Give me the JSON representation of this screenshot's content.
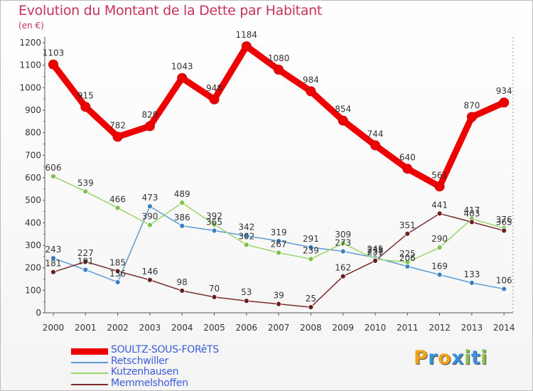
{
  "title": "Evolution du Montant de la Dette par Habitant",
  "unit": "(en €)",
  "logo": {
    "letters": [
      "P",
      "r",
      "o",
      "x",
      "i",
      "t",
      "i"
    ],
    "colors": [
      "#f2a21a",
      "#3a8fd6",
      "#f2a21a",
      "#3a8fd6",
      "#8bc34a",
      "#3a8fd6",
      "#8bc34a"
    ]
  },
  "chart_data": {
    "type": "line",
    "title": "Evolution du Montant de la Dette par Habitant",
    "ylabel": "(en €)",
    "xlabel": "",
    "x": [
      "2000",
      "2001",
      "2002",
      "2003",
      "2004",
      "2005",
      "2006",
      "2007",
      "2008",
      "2009",
      "2010",
      "2011",
      "2012",
      "2013",
      "2014"
    ],
    "ylim": [
      0,
      1200
    ],
    "yticks": [
      0,
      100,
      200,
      300,
      400,
      500,
      600,
      700,
      800,
      900,
      1000,
      1100,
      1200
    ],
    "grid": false,
    "legend": "bottom-left",
    "series": [
      {
        "name": "SOULTZ-SOUS-FORêTS",
        "color": "#ee0000",
        "marker": "#ee0000",
        "values": [
          1103,
          915,
          782,
          829,
          1043,
          948,
          1184,
          1080,
          984,
          854,
          744,
          640,
          561,
          870,
          934
        ],
        "labels": [
          "1103",
          "915",
          "782",
          "829",
          "1043",
          "948",
          "1184",
          "1080",
          "984",
          "854",
          "744",
          "640",
          "561",
          "870",
          "934"
        ]
      },
      {
        "name": "Retschwiller",
        "color": "#5b9bd5",
        "marker": "#3a7fc1",
        "values": [
          243,
          191,
          136,
          473,
          386,
          365,
          342,
          319,
          291,
          273,
          245,
          206,
          169,
          133,
          106
        ],
        "labels": [
          "243",
          "191",
          "136",
          "473",
          "386",
          "365",
          "342",
          "319",
          "291",
          "273",
          "245",
          "206",
          "169",
          "133",
          "106"
        ]
      },
      {
        "name": "Kutzenhausen",
        "color": "#9ad46a",
        "marker": "#7cc24a",
        "values": [
          606,
          539,
          466,
          390,
          489,
          392,
          302,
          267,
          239,
          309,
          238,
          225,
          290,
          417,
          376
        ],
        "labels": [
          "606",
          "539",
          "466",
          "390",
          "489",
          "392",
          "302",
          "267",
          "239",
          "309",
          "238",
          "225",
          "290",
          "417",
          "376"
        ]
      },
      {
        "name": "Memmelshoffen",
        "color": "#7b2d2d",
        "marker": "#6b1e1e",
        "values": [
          181,
          227,
          185,
          146,
          98,
          70,
          53,
          39,
          25,
          162,
          231,
          351,
          441,
          403,
          365
        ],
        "labels": [
          "181",
          "227",
          "185",
          "146",
          "98",
          "70",
          "53",
          "39",
          "25",
          "162",
          "231",
          "351",
          "441",
          "403",
          "365"
        ]
      }
    ]
  }
}
